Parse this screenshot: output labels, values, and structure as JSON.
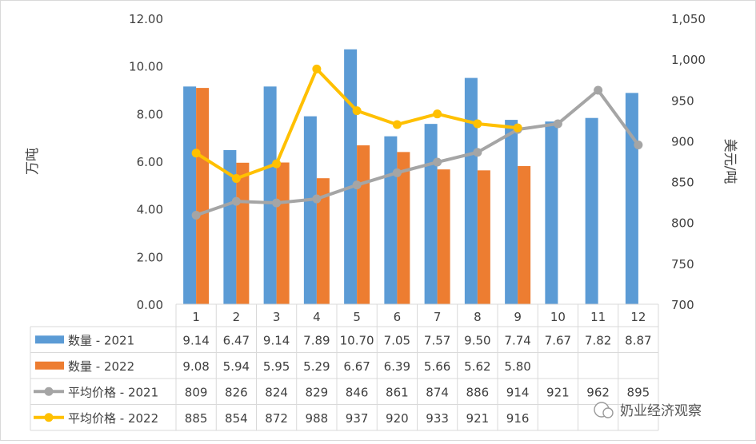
{
  "chart_data": {
    "type": "bar",
    "categories": [
      "1",
      "2",
      "3",
      "4",
      "5",
      "6",
      "7",
      "8",
      "9",
      "10",
      "11",
      "12"
    ],
    "ylabel_left": "万吨",
    "ylabel_right": "美元/吨",
    "ylim_left": [
      0,
      12
    ],
    "ylim_right": [
      700,
      1050
    ],
    "yticks_left": [
      "0.00",
      "2.00",
      "4.00",
      "6.00",
      "8.00",
      "10.00",
      "12.00"
    ],
    "yticks_right": [
      "700",
      "750",
      "800",
      "850",
      "900",
      "950",
      "1,000",
      "1,050"
    ],
    "grid": false,
    "legend_placement": "data-table-left",
    "series": [
      {
        "name": "数量 - 2021",
        "kind": "bar",
        "axis": "left",
        "color": "#5B9BD5",
        "values": [
          9.14,
          6.47,
          9.14,
          7.89,
          10.7,
          7.05,
          7.57,
          9.5,
          7.74,
          7.67,
          7.82,
          8.87
        ],
        "labels": [
          "9.14",
          "6.47",
          "9.14",
          "7.89",
          "10.70",
          "7.05",
          "7.57",
          "9.50",
          "7.74",
          "7.67",
          "7.82",
          "8.87"
        ]
      },
      {
        "name": "数量 - 2022",
        "kind": "bar",
        "axis": "left",
        "color": "#ED7D31",
        "values": [
          9.08,
          5.94,
          5.95,
          5.29,
          6.67,
          6.39,
          5.66,
          5.62,
          5.8,
          null,
          null,
          null
        ],
        "labels": [
          "9.08",
          "5.94",
          "5.95",
          "5.29",
          "6.67",
          "6.39",
          "5.66",
          "5.62",
          "5.80",
          "",
          "",
          ""
        ]
      },
      {
        "name": "平均价格 - 2021",
        "kind": "line",
        "axis": "right",
        "color": "#A5A5A5",
        "values": [
          809,
          826,
          824,
          829,
          846,
          861,
          874,
          886,
          914,
          921,
          962,
          895
        ],
        "labels": [
          "809",
          "826",
          "824",
          "829",
          "846",
          "861",
          "874",
          "886",
          "914",
          "921",
          "962",
          "895"
        ]
      },
      {
        "name": "平均价格 - 2022",
        "kind": "line",
        "axis": "right",
        "color": "#FFC000",
        "values": [
          885,
          854,
          872,
          988,
          937,
          920,
          933,
          921,
          916,
          null,
          null,
          null
        ],
        "labels": [
          "885",
          "854",
          "872",
          "988",
          "937",
          "920",
          "933",
          "921",
          "916",
          "",
          "",
          ""
        ]
      }
    ]
  },
  "watermark": {
    "text": "奶业经济观察"
  },
  "colors": {
    "axis": "#D9D9D9",
    "text": "#404040",
    "border": "#D9D9D9"
  }
}
